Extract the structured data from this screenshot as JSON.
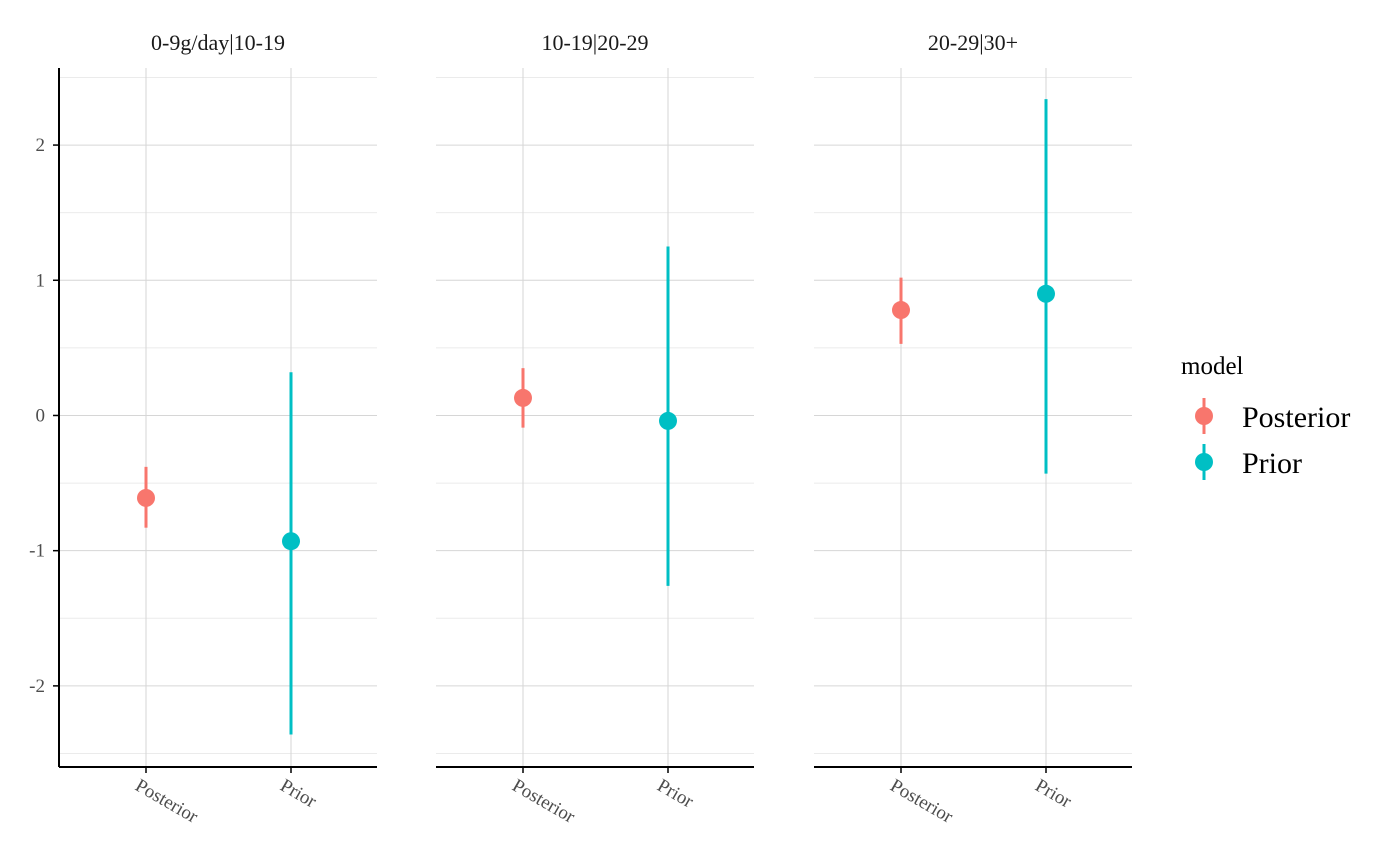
{
  "chart_data": {
    "type": "pointrange",
    "facets": [
      "0-9g/day|10-19",
      "10-19|20-29",
      "20-29|30+"
    ],
    "categories": [
      "Posterior",
      "Prior"
    ],
    "ylim": [
      -2.6,
      2.57
    ],
    "yticks": [
      2,
      1,
      0,
      -1,
      -2
    ],
    "ytick_labels": [
      "2",
      "1",
      "0",
      "-1",
      "-2"
    ],
    "xlabel": "",
    "ylabel": "",
    "grid": true,
    "legend": {
      "title": "model",
      "position": "right",
      "entries": [
        {
          "label": "Posterior",
          "color": "#F8766D"
        },
        {
          "label": "Prior",
          "color": "#00BFC4"
        }
      ]
    },
    "series": [
      {
        "name": "Posterior",
        "color": "#F8766D",
        "points": [
          {
            "facet": "0-9g/day|10-19",
            "estimate": -0.61,
            "lower": -0.83,
            "upper": -0.38
          },
          {
            "facet": "10-19|20-29",
            "estimate": 0.13,
            "lower": -0.09,
            "upper": 0.35
          },
          {
            "facet": "20-29|30+",
            "estimate": 0.78,
            "lower": 0.53,
            "upper": 1.02
          }
        ]
      },
      {
        "name": "Prior",
        "color": "#00BFC4",
        "points": [
          {
            "facet": "0-9g/day|10-19",
            "estimate": -0.93,
            "lower": -2.36,
            "upper": 0.32
          },
          {
            "facet": "10-19|20-29",
            "estimate": -0.04,
            "lower": -1.26,
            "upper": 1.25
          },
          {
            "facet": "20-29|30+",
            "estimate": 0.9,
            "lower": -0.43,
            "upper": 2.34
          }
        ]
      }
    ]
  }
}
